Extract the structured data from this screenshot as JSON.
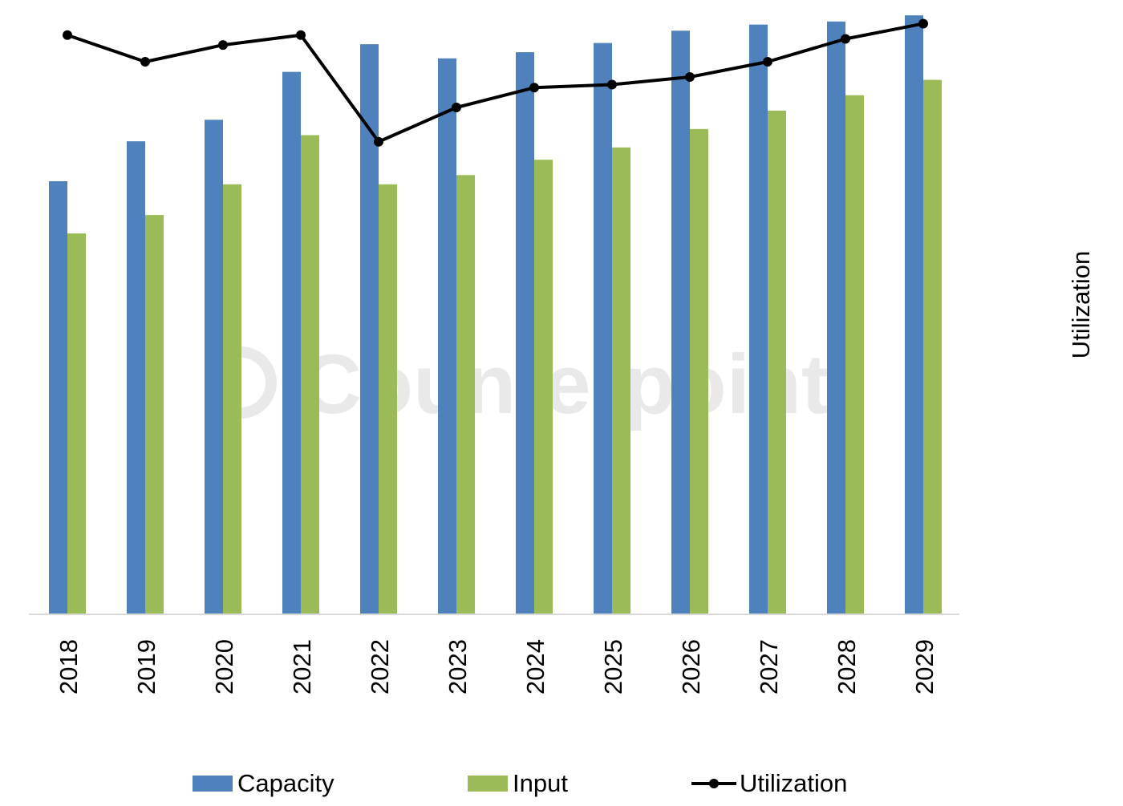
{
  "chart_data": {
    "type": "bar",
    "categories": [
      "2018",
      "2019",
      "2020",
      "2021",
      "2022",
      "2023",
      "2024",
      "2025",
      "2026",
      "2027",
      "2028",
      "2029"
    ],
    "series": [
      {
        "name": "Capacity",
        "kind": "bar",
        "color": "#4F81BD",
        "values": [
          70.5,
          77.0,
          80.5,
          88.3,
          92.8,
          90.5,
          91.5,
          93.0,
          95.0,
          96.0,
          96.5,
          97.5
        ]
      },
      {
        "name": "Input",
        "kind": "bar",
        "color": "#9BBB59",
        "values": [
          62.0,
          65.0,
          70.0,
          78.0,
          70.0,
          71.5,
          74.0,
          76.0,
          79.0,
          82.0,
          84.5,
          87.0
        ]
      },
      {
        "name": "Utilization",
        "kind": "line",
        "color": "#000000",
        "values": [
          97.5,
          94.0,
          96.2,
          97.5,
          83.5,
          88.0,
          90.6,
          91.0,
          92.0,
          94.0,
          97.0,
          99.0
        ]
      }
    ],
    "ylabel_right": "Utilization",
    "ylim": [
      0,
      100
    ],
    "grid": false,
    "legend": "bottom",
    "watermark": "Counterpoint"
  }
}
